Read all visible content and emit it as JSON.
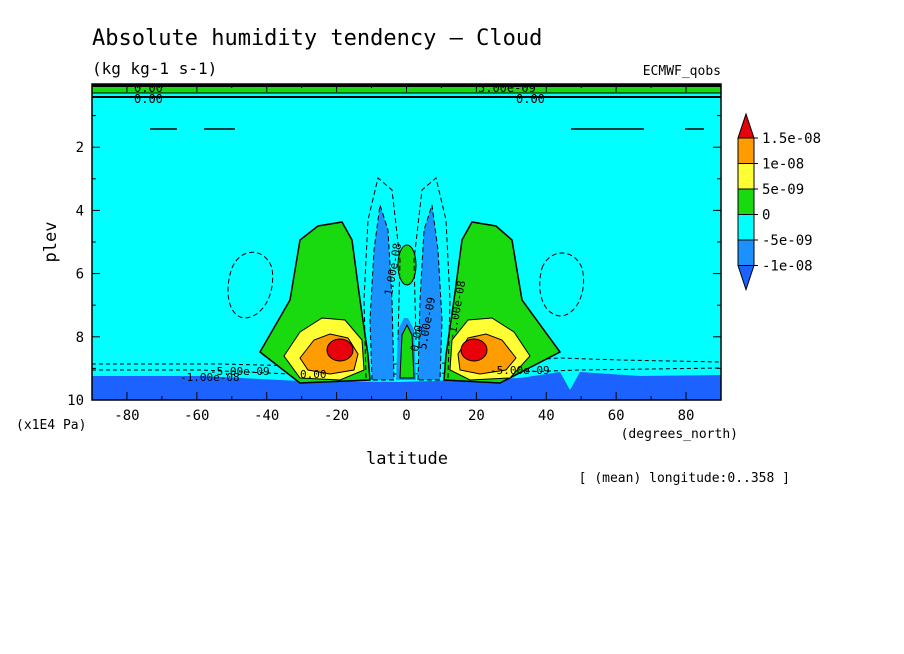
{
  "chart_data": {
    "type": "contour",
    "title": "Absolute humidity tendency — Cloud",
    "units": "(kg kg-1 s-1)",
    "source_label": "ECMWF_qobs",
    "xlabel": "latitude",
    "xunits": "(degrees_north)",
    "ylabel": "plev",
    "yunits": "(x1E4 Pa)",
    "footnote": "[ (mean) longitude:0..358 ]",
    "xlim": [
      -90,
      90
    ],
    "ylim": [
      0,
      10
    ],
    "y_inverted": true,
    "x_ticks": [
      -80,
      -60,
      -40,
      -20,
      0,
      20,
      40,
      60,
      80
    ],
    "y_ticks": [
      2,
      4,
      6,
      8,
      10
    ],
    "colorbar": {
      "labels": [
        "1.5e-08",
        "1e-08",
        "5e-09",
        "0",
        "-5e-09",
        "-1e-08"
      ],
      "colors": [
        "#e8000b",
        "#ff9d00",
        "#ffff33",
        "#19d90f",
        "#00ffff",
        "#1b91ff",
        "#1b62ff"
      ]
    },
    "contour_labels": [
      "0.00",
      "0.00",
      "5.00e-09",
      "0.00",
      "-1.00e-08",
      "-5.00e-09",
      "0.00",
      "-5.00e-09",
      "0.00",
      "1.00e-08",
      "-1.00e-08",
      "5.00e-09"
    ],
    "features": [
      {
        "name": "low-level-negative-layer",
        "lat": [
          -90,
          90
        ],
        "plev": [
          9.2,
          10
        ],
        "level": "-1e-08"
      },
      {
        "name": "positive-max-south",
        "lat": -19,
        "plev": 8.4,
        "level": "1.5e-08"
      },
      {
        "name": "positive-max-north",
        "lat": 19,
        "plev": 8.4,
        "level": "1.5e-08"
      },
      {
        "name": "positive-lobe-south",
        "lat": [
          -42,
          -10
        ],
        "plev": [
          4.4,
          9.3
        ],
        "level": "0"
      },
      {
        "name": "positive-lobe-north",
        "lat": [
          10,
          42
        ],
        "plev": [
          4.4,
          9.3
        ],
        "level": "0"
      },
      {
        "name": "equatorial-positive-cell",
        "lat": 0,
        "plev": [
          5.2,
          6.2
        ],
        "level": "0"
      },
      {
        "name": "negative-column-south",
        "lat": -7,
        "plev": [
          3.8,
          9.3
        ],
        "level": "-5e-09"
      },
      {
        "name": "negative-column-north",
        "lat": 7,
        "plev": [
          3.8,
          9.3
        ],
        "level": "-5e-09"
      },
      {
        "name": "upper-positive-layer",
        "lat": [
          -90,
          90
        ],
        "plev": [
          0.0,
          0.2
        ],
        "level": "0"
      }
    ]
  }
}
